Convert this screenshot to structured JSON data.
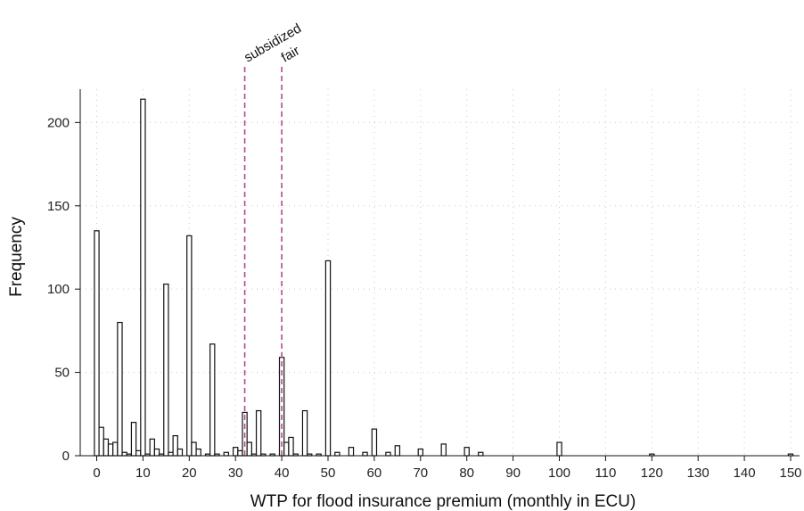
{
  "chart_data": {
    "type": "bar",
    "title": "",
    "xlabel": "WTP for flood insurance premium (monthly in ECU)",
    "ylabel": "Frequency",
    "xlim": [
      -2,
      152
    ],
    "ylim": [
      0,
      220
    ],
    "xticks": [
      0,
      10,
      20,
      30,
      40,
      50,
      60,
      70,
      80,
      90,
      100,
      110,
      120,
      130,
      140,
      150
    ],
    "yticks": [
      0,
      50,
      100,
      150,
      200
    ],
    "grid": true,
    "bar_width": 1,
    "x": [
      0,
      1,
      2,
      3,
      4,
      5,
      6,
      7,
      8,
      9,
      10,
      11,
      12,
      13,
      14,
      15,
      16,
      17,
      18,
      20,
      21,
      22,
      24,
      25,
      26,
      28,
      30,
      31,
      32,
      33,
      34,
      35,
      36,
      38,
      40,
      41,
      42,
      43,
      45,
      46,
      48,
      50,
      52,
      55,
      58,
      60,
      63,
      65,
      70,
      75,
      80,
      83,
      100,
      120,
      150
    ],
    "values": [
      135,
      17,
      10,
      7,
      8,
      80,
      2,
      1,
      20,
      3,
      214,
      1,
      10,
      4,
      1,
      103,
      2,
      12,
      4,
      132,
      8,
      4,
      1,
      67,
      1,
      2,
      5,
      3,
      26,
      8,
      1,
      27,
      1,
      1,
      59,
      8,
      11,
      1,
      27,
      1,
      1,
      117,
      2,
      5,
      2,
      16,
      2,
      6,
      4,
      7,
      5,
      2,
      8,
      1,
      1
    ],
    "reference_lines": [
      {
        "x": 32,
        "label": "subsidized",
        "color": "#b24a8c"
      },
      {
        "x": 40,
        "label": "fair",
        "color": "#b24a8c"
      }
    ]
  }
}
